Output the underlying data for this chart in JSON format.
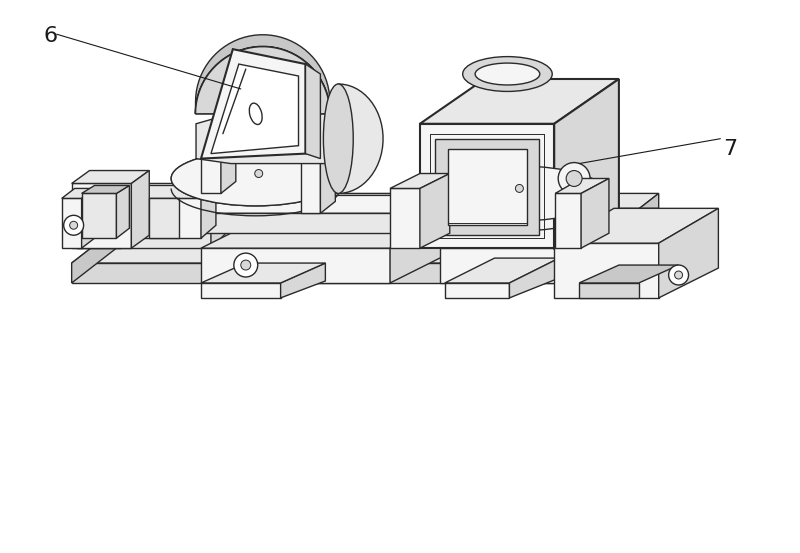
{
  "background_color": "#ffffff",
  "line_color": "#2a2a2a",
  "line_width": 1.0,
  "label_6": "6",
  "label_7": "7",
  "figsize": [
    8.0,
    5.53
  ],
  "dpi": 100,
  "fc_light": "#f5f5f5",
  "fc_mid": "#e8e8e8",
  "fc_dark": "#d8d8d8",
  "fc_darker": "#c8c8c8"
}
